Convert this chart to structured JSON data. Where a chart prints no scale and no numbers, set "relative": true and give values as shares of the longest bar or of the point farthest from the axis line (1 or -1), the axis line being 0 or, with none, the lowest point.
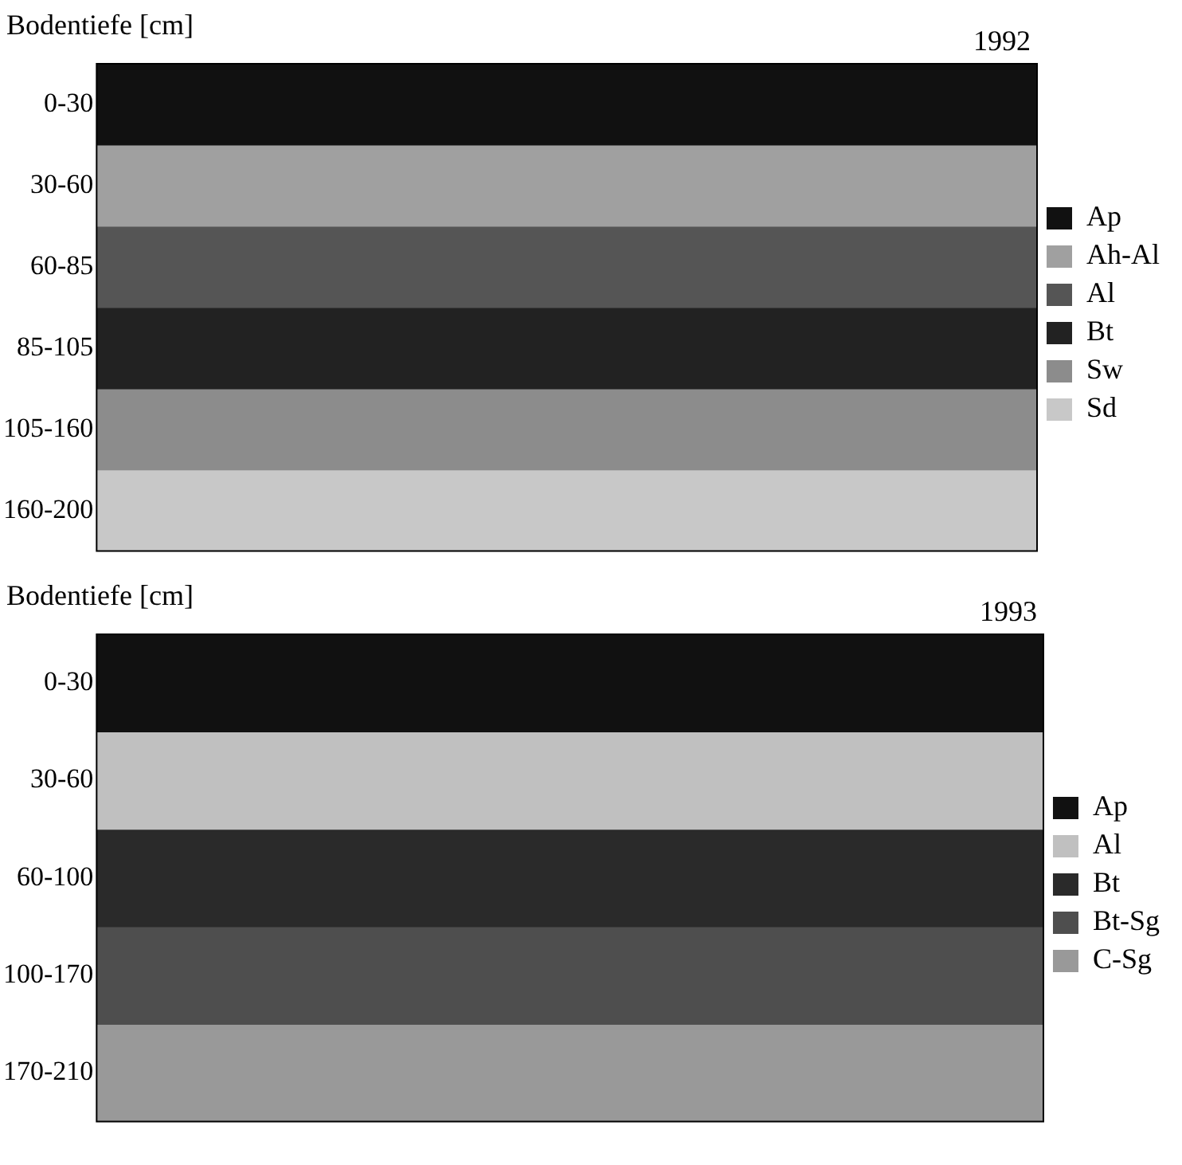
{
  "chart_data": [
    {
      "type": "bar",
      "orientation": "horizontal",
      "stacked": true,
      "relative": true,
      "title": "1992",
      "ylabel": "Bodentiefe [cm]",
      "categories": [
        "0-30",
        "30-60",
        "60-85",
        "85-105",
        "105-160",
        "160-200"
      ],
      "legend": "right",
      "series": [
        {
          "name": "Ap",
          "color": "#111111",
          "values": [
            1,
            null,
            null,
            null,
            null,
            null
          ]
        },
        {
          "name": "Ah-Al",
          "color": "#a0a0a0",
          "values": [
            null,
            1,
            null,
            null,
            null,
            null
          ]
        },
        {
          "name": "Al",
          "color": "#555555",
          "values": [
            null,
            null,
            1,
            null,
            null,
            null
          ]
        },
        {
          "name": "Bt",
          "color": "#222222",
          "values": [
            null,
            null,
            null,
            1,
            null,
            null
          ]
        },
        {
          "name": "Sw",
          "color": "#8c8c8c",
          "values": [
            null,
            null,
            null,
            null,
            1,
            null
          ]
        },
        {
          "name": "Sd",
          "color": "#c8c8c8",
          "values": [
            null,
            null,
            null,
            null,
            null,
            1
          ]
        }
      ]
    },
    {
      "type": "bar",
      "orientation": "horizontal",
      "stacked": true,
      "relative": true,
      "title": "1993",
      "ylabel": "Bodentiefe [cm]",
      "categories": [
        "0-30",
        "30-60",
        "60-100",
        "100-170",
        "170-210"
      ],
      "legend": "right",
      "series": [
        {
          "name": "Ap",
          "color": "#111111",
          "values": [
            1,
            null,
            null,
            null,
            null
          ]
        },
        {
          "name": "Al",
          "color": "#c0c0c0",
          "values": [
            null,
            1,
            null,
            null,
            null
          ]
        },
        {
          "name": "Bt",
          "color": "#2a2a2a",
          "values": [
            null,
            null,
            1,
            null,
            null
          ]
        },
        {
          "name": "Bt-Sg",
          "color": "#4e4e4e",
          "values": [
            null,
            null,
            null,
            1,
            null
          ]
        },
        {
          "name": "C-Sg",
          "color": "#999999",
          "values": [
            null,
            null,
            null,
            null,
            1
          ]
        }
      ]
    }
  ]
}
